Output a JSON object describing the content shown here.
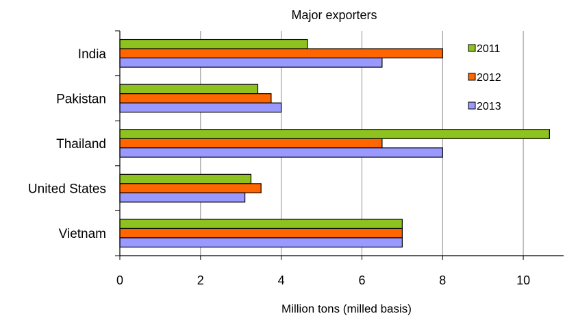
{
  "chart_data": {
    "type": "bar",
    "orientation": "horizontal",
    "title": "Major exporters",
    "xlabel": "Million tons (milled basis)",
    "ylabel": "",
    "categories": [
      "India",
      "Pakistan",
      "Thailand",
      "United States",
      "Vietnam"
    ],
    "series": [
      {
        "name": "2011",
        "color": "#8DC21F",
        "values": [
          4.65,
          3.42,
          10.65,
          3.25,
          7.0
        ]
      },
      {
        "name": "2012",
        "color": "#FF6600",
        "values": [
          8.0,
          3.75,
          6.5,
          3.5,
          7.0
        ]
      },
      {
        "name": "2013",
        "color": "#9999FF",
        "values": [
          6.5,
          4.0,
          8.0,
          3.1,
          7.0
        ]
      }
    ],
    "xlim": [
      0,
      11
    ],
    "xticks": [
      "0",
      "2",
      "4",
      "6",
      "8",
      "10"
    ],
    "grid": true,
    "legend_position": "top-right"
  }
}
